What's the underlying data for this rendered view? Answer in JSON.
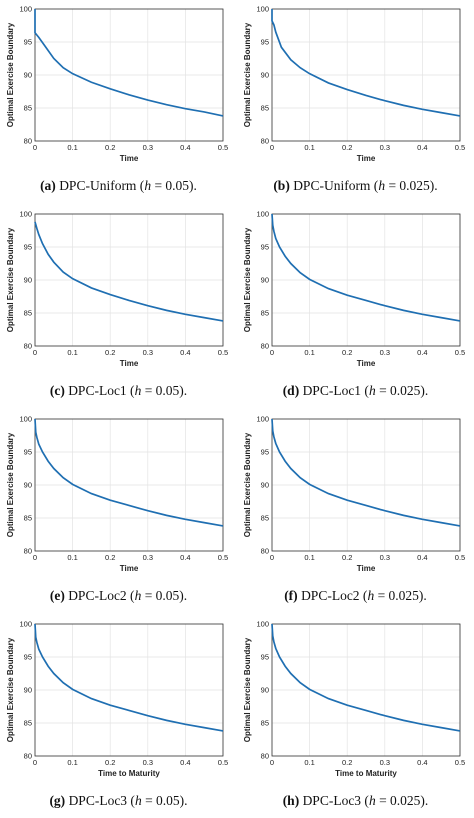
{
  "chart_data": [
    {
      "panel_label": "(a)",
      "caption_prefix": " DPC-Uniform (",
      "h_symbol": "h",
      "h_text": " = 0.05).",
      "type": "line",
      "xlabel": "Time",
      "ylabel": "Optimal Exercise Boundary",
      "xlim": [
        0,
        0.5
      ],
      "ylim": [
        80,
        100
      ],
      "xticks": [
        "0",
        "0.1",
        "0.2",
        "0.3",
        "0.4",
        "0.5"
      ],
      "yticks": [
        "80",
        "85",
        "90",
        "95",
        "100"
      ],
      "series": [
        {
          "x": [
            0,
            0.0,
            0.01,
            0.025,
            0.05,
            0.075,
            0.1,
            0.15,
            0.2,
            0.25,
            0.3,
            0.35,
            0.4,
            0.45,
            0.5
          ],
          "y": [
            100,
            96.4,
            95.7,
            94.5,
            92.5,
            91.1,
            90.2,
            88.9,
            87.9,
            87.0,
            86.2,
            85.5,
            84.9,
            84.4,
            83.8
          ]
        }
      ]
    },
    {
      "panel_label": "(b)",
      "caption_prefix": " DPC-Uniform (",
      "h_symbol": "h",
      "h_text": " = 0.025).",
      "type": "line",
      "xlabel": "Time",
      "ylabel": "Optimal Exercise Boundary",
      "xlim": [
        0,
        0.5
      ],
      "ylim": [
        80,
        100
      ],
      "xticks": [
        "0",
        "0.1",
        "0.2",
        "0.3",
        "0.4",
        "0.5"
      ],
      "yticks": [
        "80",
        "85",
        "90",
        "95",
        "100"
      ],
      "series": [
        {
          "x": [
            0,
            0.0,
            0.005,
            0.01,
            0.025,
            0.05,
            0.075,
            0.1,
            0.15,
            0.2,
            0.25,
            0.3,
            0.35,
            0.4,
            0.45,
            0.5
          ],
          "y": [
            100,
            98.2,
            97.6,
            96.5,
            94.2,
            92.3,
            91.1,
            90.2,
            88.8,
            87.8,
            86.9,
            86.1,
            85.4,
            84.8,
            84.3,
            83.8
          ]
        }
      ]
    },
    {
      "panel_label": "(c)",
      "caption_prefix": " DPC-Loc1 (",
      "h_symbol": "h",
      "h_text": " = 0.05).",
      "type": "line",
      "xlabel": "Time",
      "ylabel": "Optimal Exercise Boundary",
      "xlim": [
        0,
        0.5
      ],
      "ylim": [
        80,
        100
      ],
      "xticks": [
        "0",
        "0.1",
        "0.2",
        "0.3",
        "0.4",
        "0.5"
      ],
      "yticks": [
        "80",
        "85",
        "90",
        "95",
        "100"
      ],
      "series": [
        {
          "x": [
            0,
            0.005,
            0.01,
            0.02,
            0.035,
            0.05,
            0.075,
            0.1,
            0.15,
            0.2,
            0.25,
            0.3,
            0.35,
            0.4,
            0.45,
            0.5
          ],
          "y": [
            98.8,
            97.8,
            96.9,
            95.5,
            93.9,
            92.7,
            91.2,
            90.2,
            88.8,
            87.8,
            86.9,
            86.1,
            85.4,
            84.8,
            84.3,
            83.8
          ]
        }
      ]
    },
    {
      "panel_label": "(d)",
      "caption_prefix": " DPC-Loc1 (",
      "h_symbol": "h",
      "h_text": " = 0.025).",
      "type": "line",
      "xlabel": "Time",
      "ylabel": "Optimal Exercise Boundary",
      "xlim": [
        0,
        0.5
      ],
      "ylim": [
        80,
        100
      ],
      "xticks": [
        "0",
        "0.1",
        "0.2",
        "0.3",
        "0.4",
        "0.5"
      ],
      "yticks": [
        "80",
        "85",
        "90",
        "95",
        "100"
      ],
      "series": [
        {
          "x": [
            0,
            0.002,
            0.005,
            0.01,
            0.02,
            0.035,
            0.05,
            0.075,
            0.1,
            0.15,
            0.2,
            0.25,
            0.3,
            0.35,
            0.4,
            0.45,
            0.5
          ],
          "y": [
            100,
            98.3,
            97.4,
            96.3,
            95.0,
            93.6,
            92.5,
            91.1,
            90.1,
            88.7,
            87.7,
            86.9,
            86.1,
            85.4,
            84.8,
            84.3,
            83.8
          ]
        }
      ]
    },
    {
      "panel_label": "(e)",
      "caption_prefix": " DPC-Loc2 (",
      "h_symbol": "h",
      "h_text": " = 0.05).",
      "type": "line",
      "xlabel": "Time",
      "ylabel": "Optimal Exercise Boundary",
      "xlim": [
        0,
        0.5
      ],
      "ylim": [
        80,
        100
      ],
      "xticks": [
        "0",
        "0.1",
        "0.2",
        "0.3",
        "0.4",
        "0.5"
      ],
      "yticks": [
        "80",
        "85",
        "90",
        "95",
        "100"
      ],
      "series": [
        {
          "x": [
            0,
            0.002,
            0.005,
            0.01,
            0.02,
            0.035,
            0.05,
            0.075,
            0.1,
            0.15,
            0.2,
            0.25,
            0.3,
            0.35,
            0.4,
            0.45,
            0.5
          ],
          "y": [
            100,
            98.0,
            97.2,
            96.2,
            95.0,
            93.6,
            92.5,
            91.1,
            90.1,
            88.7,
            87.7,
            86.9,
            86.1,
            85.4,
            84.8,
            84.3,
            83.8
          ]
        }
      ]
    },
    {
      "panel_label": "(f)",
      "caption_prefix": " DPC-Loc2 (",
      "h_symbol": "h",
      "h_text": " = 0.025).",
      "type": "line",
      "xlabel": "Time",
      "ylabel": "Optimal Exercise Boundary",
      "xlim": [
        0,
        0.5
      ],
      "ylim": [
        80,
        100
      ],
      "xticks": [
        "0",
        "0.1",
        "0.2",
        "0.3",
        "0.4",
        "0.5"
      ],
      "yticks": [
        "80",
        "85",
        "90",
        "95",
        "100"
      ],
      "series": [
        {
          "x": [
            0,
            0.002,
            0.005,
            0.01,
            0.02,
            0.035,
            0.05,
            0.075,
            0.1,
            0.15,
            0.2,
            0.25,
            0.3,
            0.35,
            0.4,
            0.45,
            0.5
          ],
          "y": [
            100,
            98.2,
            97.3,
            96.3,
            95.0,
            93.6,
            92.5,
            91.1,
            90.1,
            88.7,
            87.7,
            86.9,
            86.1,
            85.4,
            84.8,
            84.3,
            83.8
          ]
        }
      ]
    },
    {
      "panel_label": "(g)",
      "caption_prefix": " DPC-Loc3 (",
      "h_symbol": "h",
      "h_text": " = 0.05).",
      "type": "line",
      "xlabel": "Time to Maturity",
      "ylabel": "Optimal Exercise Boundary",
      "xlim": [
        0,
        0.5
      ],
      "ylim": [
        80,
        100
      ],
      "xticks": [
        "0",
        "0.1",
        "0.2",
        "0.3",
        "0.4",
        "0.5"
      ],
      "yticks": [
        "80",
        "85",
        "90",
        "95",
        "100"
      ],
      "series": [
        {
          "x": [
            0,
            0.002,
            0.005,
            0.01,
            0.02,
            0.035,
            0.05,
            0.075,
            0.1,
            0.15,
            0.2,
            0.25,
            0.3,
            0.35,
            0.4,
            0.45,
            0.5
          ],
          "y": [
            100,
            98.0,
            97.2,
            96.2,
            95.0,
            93.6,
            92.5,
            91.1,
            90.1,
            88.7,
            87.7,
            86.9,
            86.1,
            85.4,
            84.8,
            84.3,
            83.8
          ]
        }
      ]
    },
    {
      "panel_label": "(h)",
      "caption_prefix": " DPC-Loc3 (",
      "h_symbol": "h",
      "h_text": " = 0.025).",
      "type": "line",
      "xlabel": "Time to Maturity",
      "ylabel": "Optimal Exercise Boundary",
      "xlim": [
        0,
        0.5
      ],
      "ylim": [
        80,
        100
      ],
      "xticks": [
        "0",
        "0.1",
        "0.2",
        "0.3",
        "0.4",
        "0.5"
      ],
      "yticks": [
        "80",
        "85",
        "90",
        "95",
        "100"
      ],
      "series": [
        {
          "x": [
            0,
            0.002,
            0.005,
            0.01,
            0.02,
            0.035,
            0.05,
            0.075,
            0.1,
            0.15,
            0.2,
            0.25,
            0.3,
            0.35,
            0.4,
            0.45,
            0.5
          ],
          "y": [
            100,
            98.2,
            97.3,
            96.3,
            95.0,
            93.6,
            92.5,
            91.1,
            90.1,
            88.7,
            87.7,
            86.9,
            86.1,
            85.4,
            84.8,
            84.3,
            83.8
          ]
        }
      ]
    }
  ],
  "colors": {
    "line": "#1f6fb2"
  }
}
